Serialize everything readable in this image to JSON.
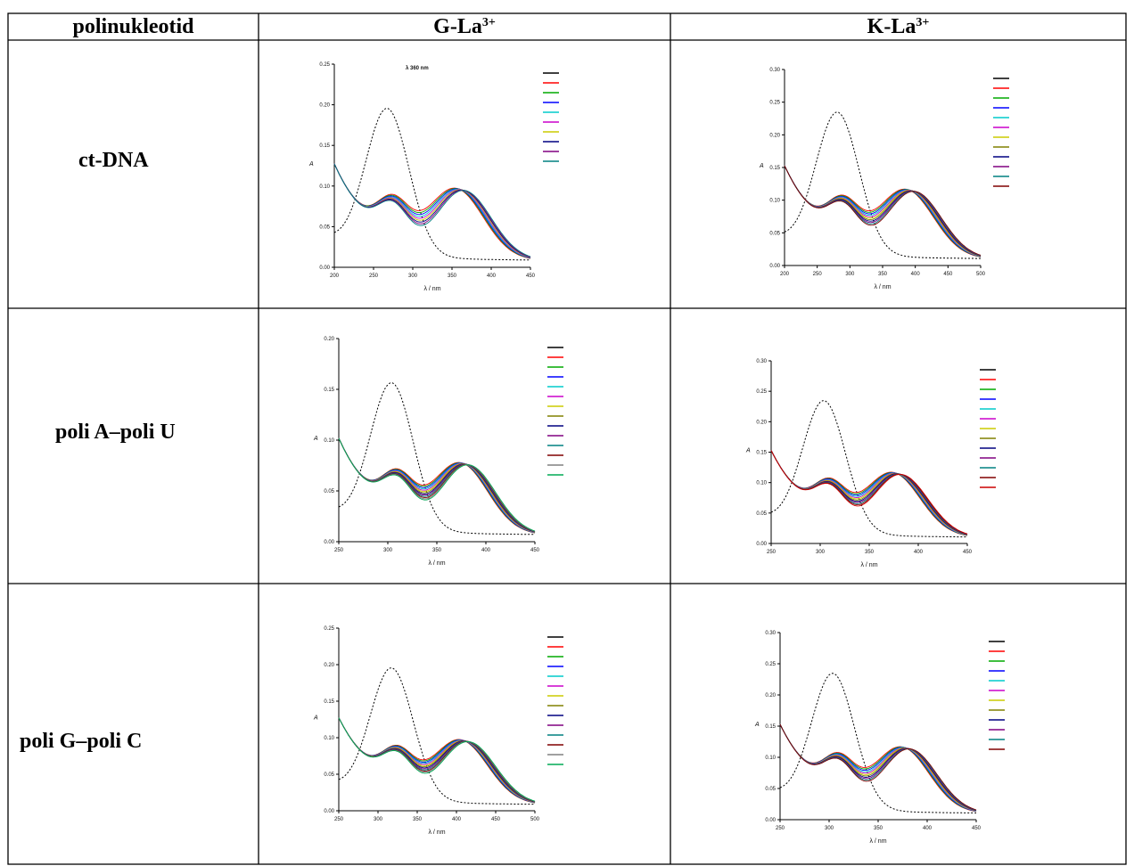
{
  "table": {
    "col_headers": [
      {
        "text": "polinukleotid",
        "sup": ""
      },
      {
        "text": "G-La",
        "sup": "3+"
      },
      {
        "text": "K-La",
        "sup": "3+"
      }
    ],
    "rows": [
      "ct-DNA",
      "poli A–poli U",
      "poli G–poli C"
    ]
  },
  "chart_data": [
    {
      "type": "line",
      "row": "ct-DNA",
      "complex": "G-La3+",
      "ylabel": "A",
      "xlabel": "λ / nm",
      "xticks": [
        "200",
        "250",
        "300",
        "350",
        "400",
        "450"
      ],
      "yticks": [
        "0.00",
        "0.05",
        "0.10",
        "0.15",
        "0.20",
        "0.25"
      ],
      "nseries": 10,
      "annotations": [
        "λ 360 nm"
      ],
      "legend_colors": [
        "#000000",
        "#ff0000",
        "#00aa00",
        "#0000ff",
        "#00cccc",
        "#cc00cc",
        "#cccc00",
        "#000080",
        "#800080",
        "#008080"
      ]
    },
    {
      "type": "line",
      "row": "ct-DNA",
      "complex": "K-La3+",
      "ylabel": "A",
      "xlabel": "λ / nm",
      "xticks": [
        "200",
        "250",
        "300",
        "350",
        "400",
        "450",
        "500"
      ],
      "yticks": [
        "0.00",
        "0.05",
        "0.10",
        "0.15",
        "0.20",
        "0.25",
        "0.30"
      ],
      "nseries": 12,
      "annotations": [],
      "legend_colors": [
        "#000000",
        "#ff0000",
        "#00aa00",
        "#0000ff",
        "#00cccc",
        "#cc00cc",
        "#cccc00",
        "#808000",
        "#000080",
        "#800080",
        "#008080",
        "#800000"
      ]
    },
    {
      "type": "line",
      "row": "poli A–poli U",
      "complex": "G-La3+",
      "ylabel": "A",
      "xlabel": "λ / nm",
      "xticks": [
        "250",
        "300",
        "350",
        "400",
        "450"
      ],
      "yticks": [
        "0.00",
        "0.05",
        "0.10",
        "0.15",
        "0.20"
      ],
      "nseries": 14,
      "annotations": [],
      "legend_colors": [
        "#000000",
        "#ff0000",
        "#00aa00",
        "#0000ff",
        "#00cccc",
        "#cc00cc",
        "#cccc00",
        "#808000",
        "#000080",
        "#800080",
        "#008080",
        "#800000",
        "#808080",
        "#00aa55"
      ]
    },
    {
      "type": "line",
      "row": "poli A–poli U",
      "complex": "K-La3+",
      "ylabel": "A",
      "xlabel": "λ / nm",
      "xticks": [
        "250",
        "300",
        "350",
        "400",
        "450"
      ],
      "yticks": [
        "0.00",
        "0.05",
        "0.10",
        "0.15",
        "0.20",
        "0.25",
        "0.30"
      ],
      "nseries": 13,
      "annotations": [],
      "legend_colors": [
        "#000000",
        "#ff0000",
        "#00aa00",
        "#0000ff",
        "#00cccc",
        "#cc00cc",
        "#cccc00",
        "#808000",
        "#000080",
        "#800080",
        "#008080",
        "#800000",
        "#cc0000"
      ]
    },
    {
      "type": "line",
      "row": "poli G–poli C",
      "complex": "G-La3+",
      "ylabel": "A",
      "xlabel": "λ / nm",
      "xticks": [
        "250",
        "300",
        "350",
        "400",
        "450",
        "500"
      ],
      "yticks": [
        "0.00",
        "0.05",
        "0.10",
        "0.15",
        "0.20",
        "0.25"
      ],
      "nseries": 14,
      "annotations": [],
      "legend_colors": [
        "#000000",
        "#ff0000",
        "#00aa00",
        "#0000ff",
        "#00cccc",
        "#cc00cc",
        "#cccc00",
        "#808000",
        "#000080",
        "#800080",
        "#008080",
        "#800000",
        "#808080",
        "#00aa55"
      ]
    },
    {
      "type": "line",
      "row": "poli G–poli C",
      "complex": "K-La3+",
      "ylabel": "A",
      "xlabel": "λ / nm",
      "xticks": [
        "250",
        "300",
        "350",
        "400",
        "450"
      ],
      "yticks": [
        "0.00",
        "0.05",
        "0.10",
        "0.15",
        "0.20",
        "0.25",
        "0.30"
      ],
      "nseries": 12,
      "annotations": [],
      "legend_colors": [
        "#000000",
        "#ff0000",
        "#00aa00",
        "#0000ff",
        "#00cccc",
        "#cc00cc",
        "#cccc00",
        "#808000",
        "#000080",
        "#800080",
        "#008080",
        "#800000"
      ]
    }
  ]
}
